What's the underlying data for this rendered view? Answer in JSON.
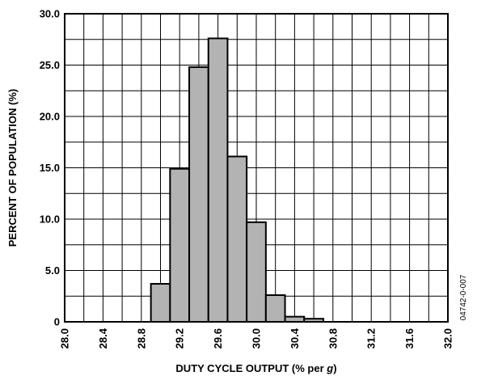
{
  "figure_id": "04742-0-007",
  "chart_data": {
    "type": "bar",
    "xlabel_main": "DUTY CYCLE OUTPUT (% per ",
    "xlabel_unit": "g",
    "xlabel_close": ")",
    "ylabel": "PERCENT OF POPULATION (%)",
    "xlim": [
      28.0,
      32.0
    ],
    "ylim": [
      0,
      30.0
    ],
    "x_ticks": [
      "28.0",
      "28.4",
      "28.8",
      "29.2",
      "29.6",
      "30.0",
      "30.4",
      "30.8",
      "31.2",
      "31.6",
      "32.0"
    ],
    "y_ticks": [
      "0",
      "5.0",
      "10.0",
      "15.0",
      "20.0",
      "25.0",
      "30.0"
    ],
    "grid": true,
    "bin_width": 0.2,
    "bins": [
      {
        "start": 28.9,
        "value": 3.7
      },
      {
        "start": 29.1,
        "value": 14.9
      },
      {
        "start": 29.3,
        "value": 24.8
      },
      {
        "start": 29.5,
        "value": 27.6
      },
      {
        "start": 29.7,
        "value": 16.1
      },
      {
        "start": 29.9,
        "value": 9.7
      },
      {
        "start": 30.1,
        "value": 2.6
      },
      {
        "start": 30.3,
        "value": 0.5
      },
      {
        "start": 30.5,
        "value": 0.3
      }
    ],
    "bar_color": "#b3b3b3"
  }
}
